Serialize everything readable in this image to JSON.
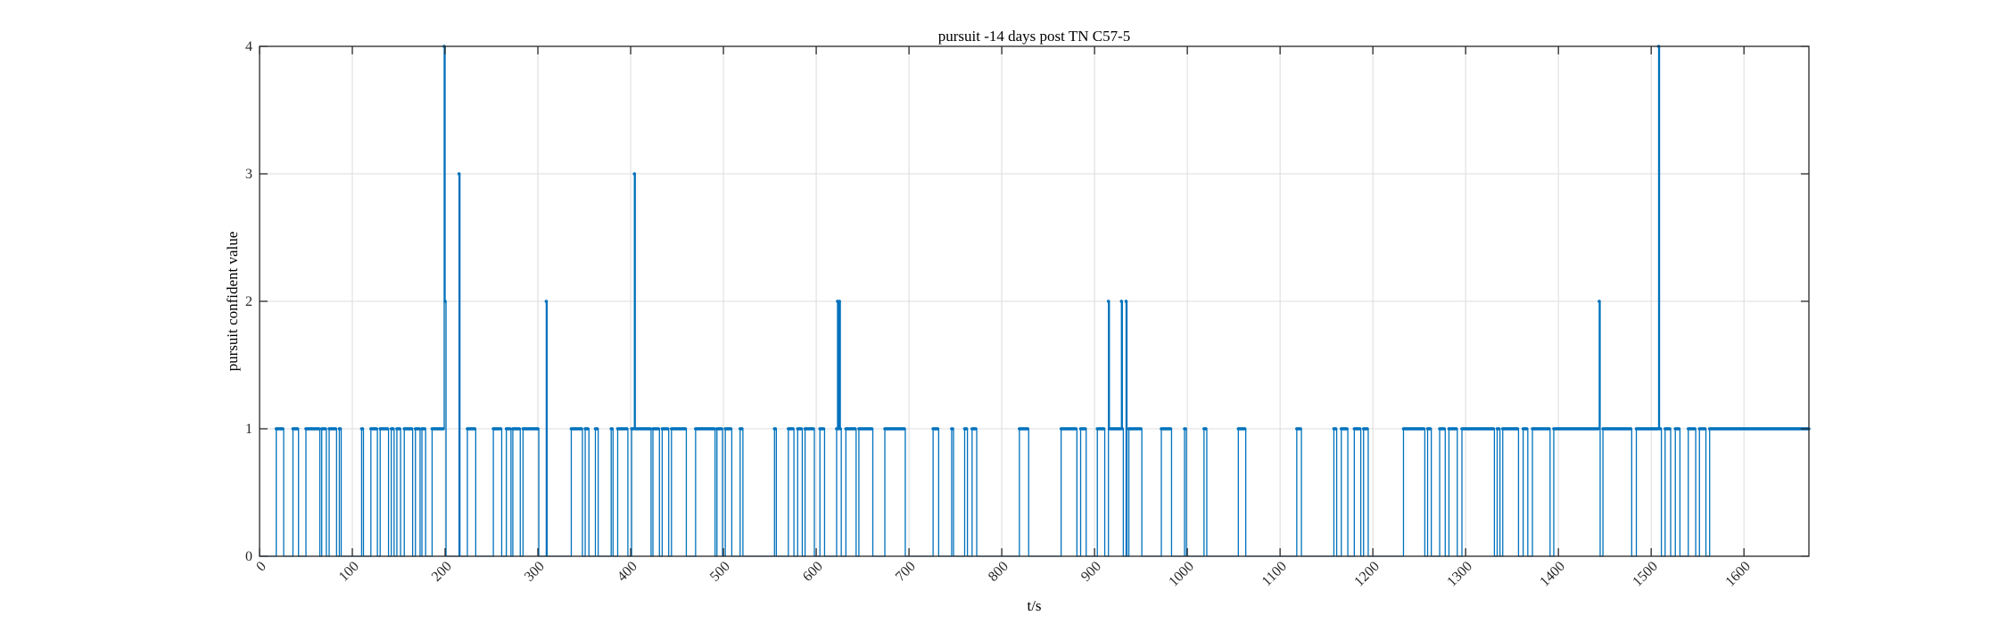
{
  "chart_data": {
    "type": "line",
    "title": "pursuit -14 days post TN C57-5",
    "xlabel": "t/s",
    "ylabel": "pursuit confident value",
    "xlim": [
      0,
      1670
    ],
    "ylim": [
      0,
      4
    ],
    "xticks": [
      0,
      100,
      200,
      300,
      400,
      500,
      600,
      700,
      800,
      900,
      1000,
      1100,
      1200,
      1300,
      1400,
      1500,
      1600
    ],
    "yticks": [
      0,
      1,
      2,
      3,
      4
    ],
    "grid": true,
    "legend": "none",
    "line_color": "#0072BD",
    "style": "stairs-with-markers",
    "default_value": 0,
    "x_step": 1,
    "series": [
      {
        "name": "",
        "ones": [
          [
            18,
            25
          ],
          [
            36,
            41
          ],
          [
            50,
            64
          ],
          [
            67,
            71
          ],
          [
            75,
            82
          ],
          [
            86,
            87
          ],
          [
            110,
            111
          ],
          [
            120,
            126
          ],
          [
            130,
            138
          ],
          [
            142,
            144
          ],
          [
            148,
            151
          ],
          [
            156,
            164
          ],
          [
            168,
            172
          ],
          [
            175,
            178
          ],
          [
            186,
            198
          ],
          [
            224,
            232
          ],
          [
            252,
            260
          ],
          [
            266,
            270
          ],
          [
            273,
            280
          ],
          [
            284,
            300
          ],
          [
            336,
            347
          ],
          [
            351,
            354
          ],
          [
            362,
            364
          ],
          [
            379,
            380
          ],
          [
            386,
            396
          ],
          [
            401,
            421
          ],
          [
            424,
            430
          ],
          [
            434,
            440
          ],
          [
            444,
            459
          ],
          [
            470,
            490
          ],
          [
            493,
            498
          ],
          [
            502,
            508
          ],
          [
            518,
            520
          ],
          [
            555,
            556
          ],
          [
            570,
            575
          ],
          [
            580,
            584
          ],
          [
            588,
            597
          ],
          [
            604,
            608
          ],
          [
            622,
            626
          ],
          [
            632,
            642
          ],
          [
            646,
            660
          ],
          [
            674,
            695
          ],
          [
            726,
            731
          ],
          [
            746,
            747
          ],
          [
            760,
            762
          ],
          [
            768,
            772
          ],
          [
            819,
            828
          ],
          [
            864,
            880
          ],
          [
            885,
            890
          ],
          [
            903,
            910
          ],
          [
            916,
            930
          ],
          [
            937,
            950
          ],
          [
            972,
            982
          ],
          [
            997,
            998
          ],
          [
            1018,
            1020
          ],
          [
            1055,
            1062
          ],
          [
            1118,
            1122
          ],
          [
            1158,
            1160
          ],
          [
            1166,
            1172
          ],
          [
            1180,
            1186
          ],
          [
            1190,
            1194
          ],
          [
            1233,
            1255
          ],
          [
            1259,
            1262
          ],
          [
            1272,
            1277
          ],
          [
            1282,
            1290
          ],
          [
            1296,
            1330
          ],
          [
            1334,
            1336
          ],
          [
            1340,
            1356
          ],
          [
            1362,
            1366
          ],
          [
            1372,
            1390
          ],
          [
            1395,
            1443
          ],
          [
            1448,
            1478
          ],
          [
            1484,
            1510
          ],
          [
            1515,
            1520
          ],
          [
            1526,
            1530
          ],
          [
            1540,
            1547
          ],
          [
            1552,
            1558
          ],
          [
            1563,
            1670
          ]
        ],
        "peaks": [
          [
            199,
            4
          ],
          [
            200,
            2
          ],
          [
            215,
            3
          ],
          [
            309,
            2
          ],
          [
            404,
            3
          ],
          [
            623,
            2
          ],
          [
            625,
            2
          ],
          [
            915,
            2
          ],
          [
            929,
            2
          ],
          [
            934,
            2
          ],
          [
            1444,
            2
          ],
          [
            1508,
            4
          ]
        ]
      }
    ]
  }
}
